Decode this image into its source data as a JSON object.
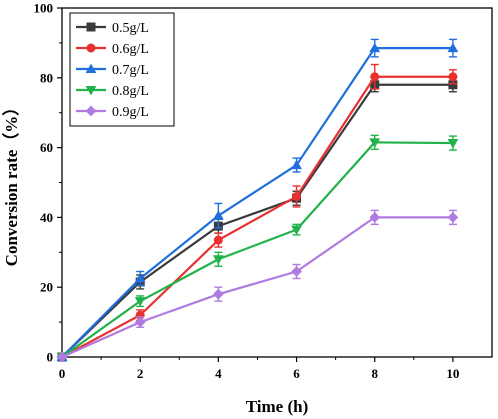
{
  "chart_data": {
    "type": "line",
    "xlabel": "Time (h)",
    "ylabel": "Conversion rate（%）",
    "x": [
      0,
      2,
      4,
      6,
      8,
      10
    ],
    "x_ticks": [
      0,
      2,
      4,
      6,
      8,
      10
    ],
    "y_ticks": [
      0,
      20,
      40,
      60,
      80,
      100
    ],
    "xlim": [
      0,
      11
    ],
    "ylim": [
      0,
      100
    ],
    "grid": false,
    "legend_position": "top-left",
    "series": [
      {
        "name": "0.5g/L",
        "color": "#3a3a3a",
        "marker": "square",
        "values": [
          0,
          21.5,
          37.5,
          45.5,
          78,
          78
        ],
        "errors": [
          0,
          2.0,
          2.0,
          2.0,
          2.0,
          2.0
        ]
      },
      {
        "name": "0.6g/L",
        "color": "#e8312f",
        "marker": "circle",
        "values": [
          0,
          12,
          33.5,
          46,
          80.3,
          80.3
        ],
        "errors": [
          0,
          1.5,
          2.0,
          3.0,
          3.5,
          2.0
        ]
      },
      {
        "name": "0.7g/L",
        "color": "#1f6fdc",
        "marker": "triangle-up",
        "values": [
          0,
          22.5,
          40.5,
          55,
          88.5,
          88.5
        ],
        "errors": [
          0,
          2.0,
          3.5,
          2.0,
          2.5,
          2.5
        ]
      },
      {
        "name": "0.8g/L",
        "color": "#21b24a",
        "marker": "triangle-down",
        "values": [
          0,
          16,
          28,
          36.5,
          61.5,
          61.3
        ],
        "errors": [
          0,
          1.5,
          2.0,
          1.5,
          2.0,
          2.0
        ]
      },
      {
        "name": "0.9g/L",
        "color": "#b07be0",
        "marker": "diamond",
        "values": [
          0,
          10,
          18,
          24.5,
          40,
          40
        ],
        "errors": [
          0,
          1.5,
          2.0,
          2.0,
          2.0,
          2.0
        ]
      }
    ]
  }
}
